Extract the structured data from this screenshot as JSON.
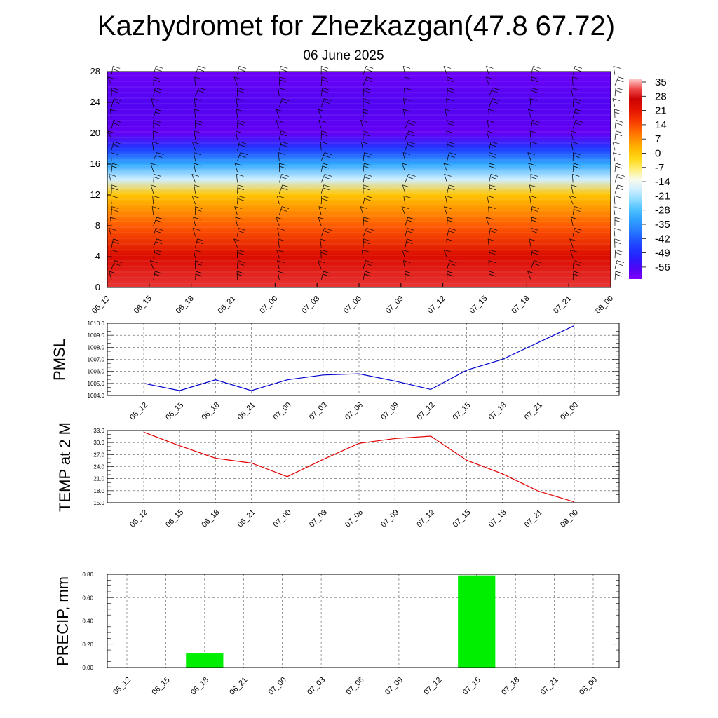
{
  "header": {
    "title": "Kazhydromet for Zhezkazgan(47.8 67.72)",
    "date": "06 June 2025"
  },
  "time_labels": [
    "06_12",
    "06_15",
    "06_18",
    "06_21",
    "07_00",
    "07_03",
    "07_06",
    "07_09",
    "07_12",
    "07_15",
    "07_18",
    "07_21",
    "08_00"
  ],
  "colors": {
    "pmsl_line": "#0000cc",
    "temp_line": "#e00000",
    "precip_bar": "#00ee00",
    "grid": "#555555"
  },
  "chart_data": [
    {
      "type": "heatmap",
      "name": "cross-section",
      "x": [
        "06_12",
        "06_15",
        "06_18",
        "06_21",
        "07_00",
        "07_03",
        "07_06",
        "07_09",
        "07_12",
        "07_15",
        "07_18",
        "07_21",
        "08_00"
      ],
      "ylim": [
        0,
        28
      ],
      "yticks": [
        "0",
        "4",
        "8",
        "12",
        "16",
        "20",
        "24",
        "28"
      ],
      "colorbar": {
        "labels": [
          "35",
          "28",
          "21",
          "14",
          "7",
          "0",
          "-7",
          "-14",
          "-21",
          "-28",
          "-35",
          "-42",
          "-49",
          "-56"
        ],
        "range": [
          -60,
          38
        ]
      },
      "vertical_temperature_profile": [
        {
          "y": 0,
          "t": 32
        },
        {
          "y": 4,
          "t": 25
        },
        {
          "y": 8,
          "t": 14
        },
        {
          "y": 12,
          "t": 2
        },
        {
          "y": 14,
          "t": -16
        },
        {
          "y": 16,
          "t": -30
        },
        {
          "y": 18,
          "t": -45
        },
        {
          "y": 20,
          "t": -57
        },
        {
          "y": 24,
          "t": -55
        },
        {
          "y": 28,
          "t": -58
        }
      ]
    },
    {
      "type": "line",
      "name": "pmsl",
      "ylabel": "PMSL",
      "yticks": [
        "1004.0",
        "1005.0",
        "1006.0",
        "1007.0",
        "1008.0",
        "1009.0",
        "1010.0"
      ],
      "ylim": [
        1004.0,
        1010.0
      ],
      "x": [
        "06_12",
        "06_15",
        "06_18",
        "06_21",
        "07_00",
        "07_03",
        "07_06",
        "07_09",
        "07_12",
        "07_15",
        "07_18",
        "07_21",
        "08_00"
      ],
      "values": [
        1005.0,
        1004.4,
        1005.3,
        1004.4,
        1005.3,
        1005.7,
        1005.8,
        1005.2,
        1004.5,
        1006.1,
        1007.0,
        1008.4,
        1009.8
      ]
    },
    {
      "type": "line",
      "name": "temp",
      "ylabel": "TEMP at 2 M",
      "yticks": [
        "15.0",
        "18.0",
        "21.0",
        "24.0",
        "27.0",
        "30.0",
        "33.0"
      ],
      "ylim": [
        15.0,
        33.0
      ],
      "x": [
        "06_12",
        "06_15",
        "06_18",
        "06_21",
        "07_00",
        "07_03",
        "07_06",
        "07_09",
        "07_12",
        "07_15",
        "07_18",
        "07_21",
        "08_00"
      ],
      "values": [
        32.6,
        29.2,
        26.1,
        24.9,
        21.5,
        25.8,
        29.8,
        31.0,
        31.6,
        25.6,
        22.2,
        17.9,
        15.2
      ]
    },
    {
      "type": "bar",
      "name": "precip",
      "ylabel": "PRECIP, mm",
      "yticks": [
        "0.00",
        "0.20",
        "0.40",
        "0.60",
        "0.80"
      ],
      "ylim": [
        0,
        0.8
      ],
      "categories": [
        "06_12",
        "06_15",
        "06_18",
        "06_21",
        "07_00",
        "07_03",
        "07_06",
        "07_09",
        "07_12",
        "07_15",
        "07_18",
        "07_21",
        "08_00"
      ],
      "values": [
        0,
        0,
        0.12,
        0,
        0,
        0,
        0,
        0,
        0,
        0.79,
        0,
        0,
        0
      ]
    }
  ]
}
